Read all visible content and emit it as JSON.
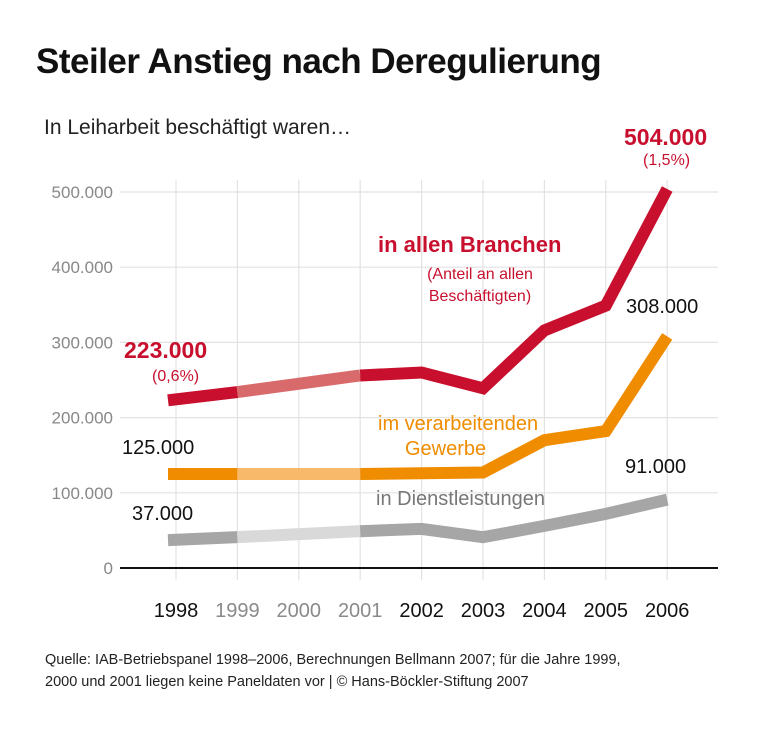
{
  "chart_data": {
    "type": "line",
    "title": "Steiler Anstieg nach Deregulierung",
    "subtitle": "In Leiharbeit beschäftigt waren…",
    "x": [
      "1998",
      "1999",
      "2000",
      "2001",
      "2002",
      "2003",
      "2004",
      "2005",
      "2006"
    ],
    "interpolated_years": [
      "1999",
      "2000",
      "2001"
    ],
    "ylim": [
      0,
      500000
    ],
    "yticks": [
      "0",
      "100.000",
      "200.000",
      "300.000",
      "400.000",
      "500.000"
    ],
    "ytick_values": [
      0,
      100000,
      200000,
      300000,
      400000,
      500000
    ],
    "grid": true,
    "series": [
      {
        "name": "in allen Branchen",
        "note": "(Anteil an allen Beschäftigten)",
        "color": "#c8102e",
        "light_color": "#d86a6c",
        "values": [
          223000,
          234000,
          245000,
          256000,
          260000,
          239000,
          316000,
          349000,
          504000
        ],
        "start_label": "223.000",
        "start_share": "(0,6%)",
        "end_label": "504.000",
        "end_share": "(1,5%)"
      },
      {
        "name": "im verarbeitenden Gewerbe",
        "name_lines": [
          "im verarbeitenden",
          "Gewerbe"
        ],
        "color": "#f08c00",
        "light_color": "#f8b96a",
        "values": [
          125000,
          125000,
          125000,
          125000,
          126000,
          127000,
          170000,
          182000,
          308000
        ],
        "start_label": "125.000",
        "end_label": "308.000"
      },
      {
        "name": "in Dienstleistungen",
        "color": "#a6a6a6",
        "light_color": "#d9d9d9",
        "values": [
          37000,
          41000,
          45000,
          49000,
          52000,
          41000,
          56000,
          72000,
          91000
        ],
        "start_label": "37.000",
        "end_label": "91.000"
      }
    ]
  },
  "source": {
    "line1": "Quelle: IAB-Betriebspanel 1998–2006, Berechnungen Bellmann 2007; für die Jahre 1999,",
    "line2": "2000 und 2001 liegen keine Paneldaten vor | © Hans-Böckler-Stiftung 2007"
  }
}
